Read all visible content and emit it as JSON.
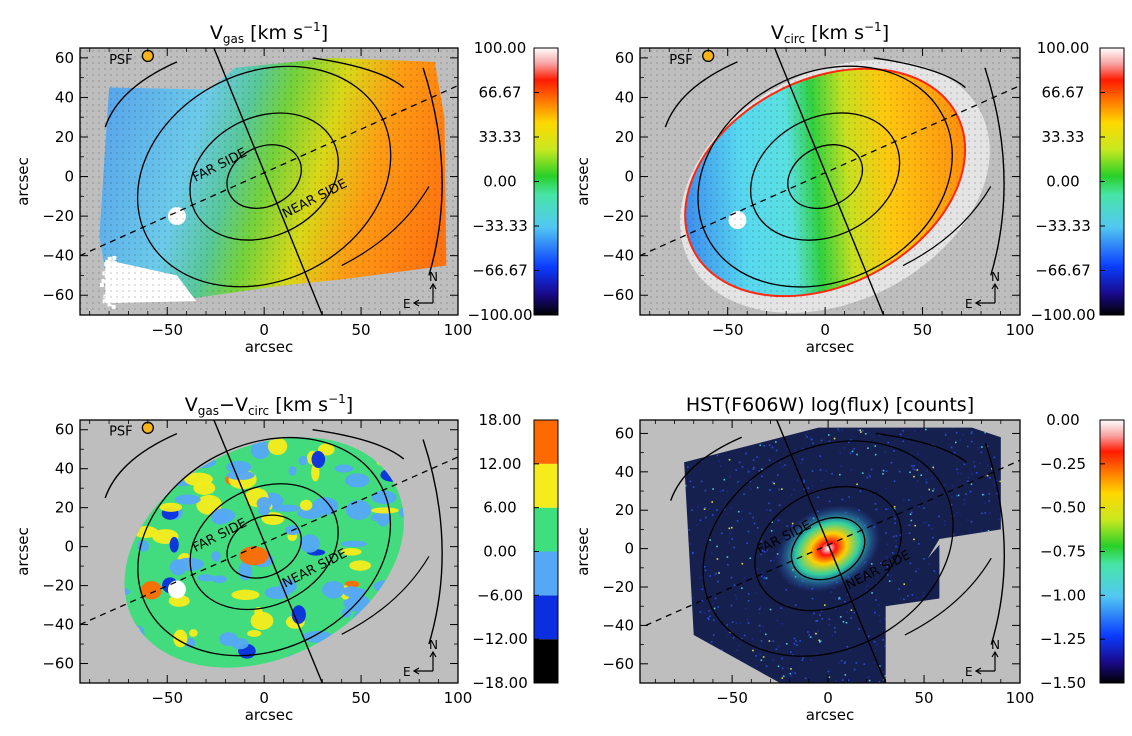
{
  "chart_data": [
    {
      "type": "heatmap",
      "title_main": "V",
      "title_sub": "gas",
      "title_unit": "[km s",
      "title_exp": "−1",
      "title_close": "]",
      "xlabel": "arcsec",
      "ylabel": "arcsec",
      "xlim": [
        -95,
        100
      ],
      "ylim": [
        -70,
        65
      ],
      "xticks": [
        "−50",
        "0",
        "50",
        "100"
      ],
      "xtick_values": [
        -50,
        0,
        50,
        100
      ],
      "yticks": [
        "60",
        "40",
        "20",
        "0",
        "−20",
        "−40",
        "−60"
      ],
      "ytick_values": [
        60,
        40,
        20,
        0,
        -20,
        -40,
        -60
      ],
      "colorbar_ticks": [
        "100.00",
        "66.67",
        "33.33",
        "0.00",
        "−33.33",
        "−66.67",
        "−100.00"
      ],
      "colorbar_range": [
        -100,
        100
      ],
      "psf_label": "PSF",
      "annotations": [
        "FAR SIDE",
        "NEAR SIDE"
      ],
      "compass": {
        "north": "N",
        "east": "E"
      }
    },
    {
      "type": "heatmap",
      "title_main": "V",
      "title_sub": "circ",
      "title_unit": "[km s",
      "title_exp": "−1",
      "title_close": "]",
      "xlabel": "arcsec",
      "ylabel": "arcsec",
      "xlim": [
        -95,
        100
      ],
      "ylim": [
        -70,
        65
      ],
      "xticks": [
        "−50",
        "0",
        "50",
        "100"
      ],
      "xtick_values": [
        -50,
        0,
        50,
        100
      ],
      "yticks": [
        "60",
        "40",
        "20",
        "0",
        "−20",
        "−40",
        "−60"
      ],
      "ytick_values": [
        60,
        40,
        20,
        0,
        -20,
        -40,
        -60
      ],
      "colorbar_ticks": [
        "100.00",
        "66.67",
        "33.33",
        "0.00",
        "−33.33",
        "−66.67",
        "−100.00"
      ],
      "colorbar_range": [
        -100,
        100
      ],
      "psf_label": "PSF",
      "annotations": [],
      "compass": {
        "north": "N",
        "east": "E"
      }
    },
    {
      "type": "heatmap",
      "title_main": "V",
      "title_sub": "gas",
      "title_mid": "−V",
      "title_sub2": "circ",
      "title_unit": "[km s",
      "title_exp": "−1",
      "title_close": "]",
      "xlabel": "arcsec",
      "ylabel": "arcsec",
      "xlim": [
        -95,
        100
      ],
      "ylim": [
        -70,
        65
      ],
      "xticks": [
        "−50",
        "0",
        "50",
        "100"
      ],
      "xtick_values": [
        -50,
        0,
        50,
        100
      ],
      "yticks": [
        "60",
        "40",
        "20",
        "0",
        "−20",
        "−40",
        "−60"
      ],
      "ytick_values": [
        60,
        40,
        20,
        0,
        -20,
        -40,
        -60
      ],
      "colorbar_ticks": [
        "18.00",
        "12.00",
        "6.00",
        "0.00",
        "−6.00",
        "−12.00",
        "−18.00"
      ],
      "colorbar_range": [
        -18,
        18
      ],
      "colorbar_discrete_colors": [
        "#000000",
        "#0a2ee0",
        "#55a8f5",
        "#3ee07e",
        "#f6ec1b",
        "#ff6a00"
      ],
      "psf_label": "PSF",
      "annotations": [
        "FAR SIDE",
        "NEAR SIDE"
      ],
      "compass": {
        "north": "N",
        "east": "E"
      }
    },
    {
      "type": "heatmap",
      "title_main": "HST(F606W) log(flux) [counts]",
      "xlabel": "arcsec",
      "ylabel": "arcsec",
      "xlim": [
        -98,
        100
      ],
      "ylim": [
        -70,
        67
      ],
      "xticks": [
        "−50",
        "0",
        "50",
        "100"
      ],
      "xtick_values": [
        -50,
        0,
        50,
        100
      ],
      "yticks": [
        "60",
        "40",
        "20",
        "0",
        "−20",
        "−40",
        "−60"
      ],
      "ytick_values": [
        60,
        40,
        20,
        0,
        -20,
        -40,
        -60
      ],
      "colorbar_ticks": [
        "0.00",
        "−0.25",
        "−0.50",
        "−0.75",
        "−1.00",
        "−1.25",
        "−1.50"
      ],
      "colorbar_range": [
        -1.5,
        0
      ],
      "annotations": [
        "FAR SIDE",
        "NEAR SIDE"
      ],
      "compass": {
        "north": "N",
        "east": "E"
      }
    }
  ]
}
